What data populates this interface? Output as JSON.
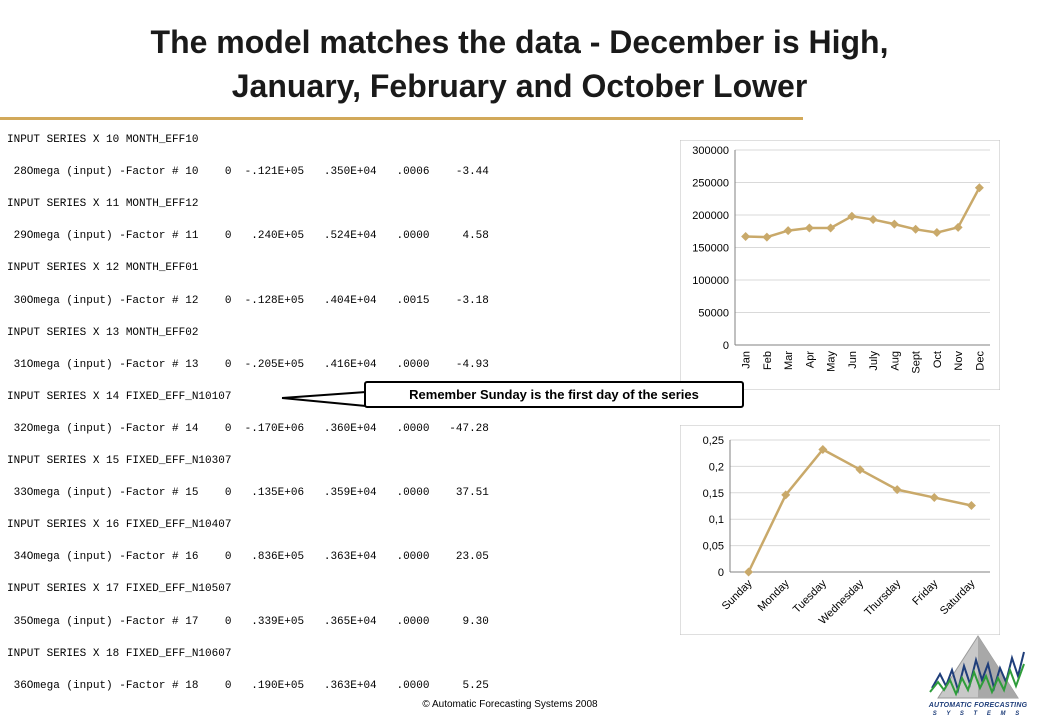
{
  "title": {
    "line1": "The model matches the data - December is High,",
    "line2": "January, February and October Lower"
  },
  "listing": [
    "INPUT SERIES X 10 MONTH_EFF10",
    " 28Omega (input) -Factor # 10    0  -.121E+05   .350E+04   .0006    -3.44",
    "INPUT SERIES X 11 MONTH_EFF12",
    " 29Omega (input) -Factor # 11    0   .240E+05   .524E+04   .0000     4.58",
    "INPUT SERIES X 12 MONTH_EFF01",
    " 30Omega (input) -Factor # 12    0  -.128E+05   .404E+04   .0015    -3.18",
    "INPUT SERIES X 13 MONTH_EFF02",
    " 31Omega (input) -Factor # 13    0  -.205E+05   .416E+04   .0000    -4.93",
    "INPUT SERIES X 14 FIXED_EFF_N10107",
    " 32Omega (input) -Factor # 14    0  -.170E+06   .360E+04   .0000   -47.28",
    "INPUT SERIES X 15 FIXED_EFF_N10307",
    " 33Omega (input) -Factor # 15    0   .135E+06   .359E+04   .0000    37.51",
    "INPUT SERIES X 16 FIXED_EFF_N10407",
    " 34Omega (input) -Factor # 16    0   .836E+05   .363E+04   .0000    23.05",
    "INPUT SERIES X 17 FIXED_EFF_N10507",
    " 35Omega (input) -Factor # 17    0   .339E+05   .365E+04   .0000     9.30",
    "INPUT SERIES X 18 FIXED_EFF_N10607",
    " 36Omega (input) -Factor # 18    0   .190E+05   .363E+04   .0000     5.25"
  ],
  "callout": "Remember Sunday is the first day of the series",
  "copyright": "© Automatic Forecasting Systems 2008",
  "logo": {
    "line1": "AUTOMATIC FORECASTING",
    "line2": "S Y S T E M S"
  },
  "colors": {
    "series": "#c9a96a",
    "accent_rule": "#d2a95a",
    "logo_blue": "#1f3e7a",
    "gridline": "#d9d9d9"
  },
  "chart_data": [
    {
      "type": "line",
      "categories": [
        "Jan",
        "Feb",
        "Mar",
        "Apr",
        "May",
        "Jun",
        "July",
        "Aug",
        "Sept",
        "Oct",
        "Nov",
        "Dec"
      ],
      "values": [
        167000,
        166000,
        176000,
        180000,
        180000,
        198000,
        193000,
        186000,
        178000,
        173000,
        181000,
        242000
      ],
      "ylim": [
        0,
        300000
      ],
      "yticks": [
        0,
        50000,
        100000,
        150000,
        200000,
        250000,
        300000
      ],
      "ytick_labels": [
        "0",
        "50000",
        "100000",
        "150000",
        "200000",
        "250000",
        "300000"
      ],
      "grid": true,
      "marker": "diamond"
    },
    {
      "type": "line",
      "categories": [
        "Sunday",
        "Monday",
        "Tuesday",
        "Wednesday",
        "Thursday",
        "Friday",
        "Saturday"
      ],
      "values": [
        0,
        0.146,
        0.232,
        0.194,
        0.156,
        0.141,
        0.126
      ],
      "ylim": [
        0,
        0.25
      ],
      "yticks": [
        0,
        0.05,
        0.1,
        0.15,
        0.2,
        0.25
      ],
      "ytick_labels": [
        "0",
        "0,05",
        "0,1",
        "0,15",
        "0,2",
        "0,25"
      ],
      "grid": true,
      "marker": "diamond"
    }
  ]
}
